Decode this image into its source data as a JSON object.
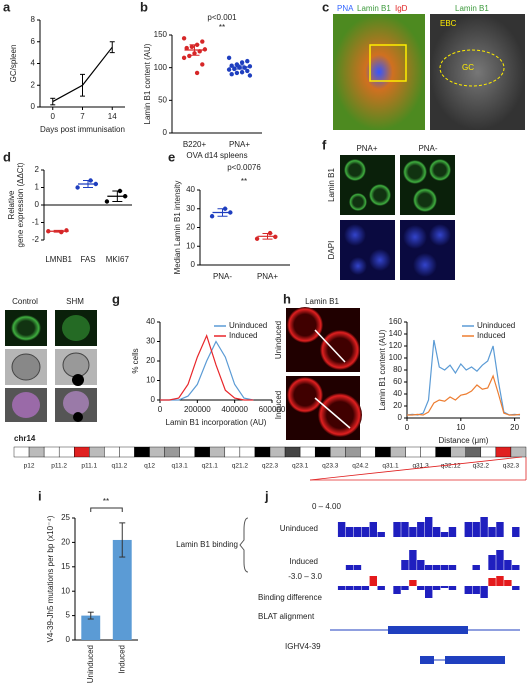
{
  "chart_data": [
    {
      "type": "line",
      "panel": "a",
      "xlabel": "Days post immunisation",
      "ylabel": "GC/spleen",
      "x": [
        0,
        7,
        14
      ],
      "xlim": [
        -3,
        17
      ],
      "xticks": [
        0,
        7,
        14
      ],
      "ylim": [
        0,
        8
      ],
      "yticks": [
        0,
        2,
        4,
        6,
        8
      ],
      "series": [
        {
          "color": "#000000",
          "values": [
            0.5,
            2,
            5.5
          ],
          "errors": [
            0.3,
            1,
            0.5
          ]
        }
      ]
    },
    {
      "type": "dot",
      "panel": "b",
      "ylabel": "Lamin B1 content (AU)",
      "xlabel": "OVA d14 spleens",
      "categories": [
        "B220+",
        "PNA+"
      ],
      "colors": [
        "#d62728",
        "#1f3fbf"
      ],
      "points": [
        [
          145,
          140,
          135,
          132,
          130,
          128,
          125,
          122,
          118,
          115,
          105,
          92
        ],
        [
          115,
          110,
          108,
          105,
          103,
          102,
          100,
          100,
          98,
          97,
          95,
          93,
          92,
          90,
          88
        ]
      ],
      "means": [
        127,
        101
      ],
      "errors": [
        8,
        3
      ],
      "annotations": [
        "p<0.001",
        "**"
      ],
      "ylim": [
        0,
        150
      ],
      "yticks": [
        0,
        50,
        100,
        150
      ]
    },
    {
      "type": "dot",
      "panel": "d",
      "ylabel": [
        "Relative",
        "gene expression (ΔΔCt)"
      ],
      "categories": [
        "LMNB1",
        "FAS",
        "MKI67"
      ],
      "colors": [
        "#d62728",
        "#1f3fbf",
        "#000000"
      ],
      "points": [
        [
          -1.5,
          -1.45,
          -1.55
        ],
        [
          1.0,
          1.2,
          1.4
        ],
        [
          0.2,
          0.5,
          0.8
        ]
      ],
      "means": [
        -1.5,
        1.2,
        0.5
      ],
      "errors": [
        0.05,
        0.2,
        0.3
      ],
      "ylim": [
        -2,
        2
      ],
      "yticks": [
        -2,
        -1,
        0,
        1,
        2
      ]
    },
    {
      "type": "dot",
      "panel": "e",
      "ylabel": "Median Lamin B1 intensity",
      "categories": [
        "PNA-",
        "PNA+"
      ],
      "colors": [
        "#1f3fbf",
        "#d62728"
      ],
      "points": [
        [
          26,
          28,
          30
        ],
        [
          14,
          15,
          17
        ]
      ],
      "means": [
        28,
        15.3
      ],
      "errors": [
        2,
        1.5
      ],
      "annotations": [
        "p<0.0076",
        "**"
      ],
      "ylim": [
        0,
        40
      ],
      "yticks": [
        0,
        10,
        20,
        30,
        40
      ]
    },
    {
      "type": "line",
      "panel": "g",
      "xlabel": "Lamin B1 incorporation (AU)",
      "ylabel": "% cells",
      "x": [
        0,
        50000,
        100000,
        150000,
        200000,
        250000,
        300000,
        350000,
        400000,
        450000,
        500000
      ],
      "xlim": [
        0,
        600000
      ],
      "xticks": [
        0,
        200000,
        400000,
        600000
      ],
      "ylim": [
        0,
        40
      ],
      "yticks": [
        0,
        10,
        20,
        30,
        40
      ],
      "legend": "top-right",
      "series": [
        {
          "name": "Uninduced",
          "color": "#5b9bd5",
          "values": [
            0,
            0,
            0,
            2,
            8,
            20,
            30,
            22,
            8,
            1,
            0
          ]
        },
        {
          "name": "Induced",
          "color": "#e8262a",
          "values": [
            0,
            0,
            1,
            8,
            22,
            33,
            18,
            5,
            1,
            0,
            0
          ]
        }
      ]
    },
    {
      "type": "line",
      "panel": "h",
      "xlabel": "Distance (μm)",
      "ylabel": "Lamin B1 content (AU)",
      "x": [
        0,
        1,
        2,
        3,
        4,
        5,
        6,
        7,
        8,
        9,
        10,
        11,
        12,
        13,
        14,
        15,
        16,
        17,
        18,
        19,
        20,
        21
      ],
      "xlim": [
        0,
        21
      ],
      "xticks": [
        0,
        10,
        20
      ],
      "ylim": [
        0,
        160
      ],
      "yticks": [
        0,
        20,
        40,
        60,
        80,
        100,
        120,
        140,
        160
      ],
      "legend": "top-right",
      "series": [
        {
          "name": "Uninduced",
          "color": "#5b9bd5",
          "values": [
            5,
            6,
            5,
            8,
            30,
            130,
            85,
            80,
            88,
            75,
            90,
            80,
            85,
            78,
            88,
            95,
            120,
            60,
            10,
            5,
            6,
            5
          ]
        },
        {
          "name": "Induced",
          "color": "#ed7d31",
          "values": [
            5,
            5,
            6,
            5,
            10,
            25,
            30,
            28,
            35,
            30,
            38,
            40,
            45,
            55,
            48,
            50,
            70,
            40,
            8,
            5,
            5,
            6
          ]
        }
      ]
    },
    {
      "type": "bar",
      "panel": "i",
      "ylabel": "V4-39-Jh5 mutations per bp (x10⁻⁴)",
      "categories": [
        "Uninduced",
        "Induced"
      ],
      "values": [
        5,
        20.5
      ],
      "errors": [
        0.7,
        3.5
      ],
      "color": "#5b9bd5",
      "annotations": [
        "**"
      ],
      "ylim": [
        0,
        25
      ],
      "yticks": [
        0,
        5,
        10,
        15,
        20,
        25
      ]
    },
    {
      "type": "tracks",
      "panel": "j",
      "group_label": "Lamin B1 binding",
      "range_label": "0 – 4.00",
      "range": [
        0,
        4
      ],
      "tracks": [
        {
          "name": "Uninduced",
          "color": "#1f1fbf",
          "values": [
            0,
            3,
            2,
            2,
            2,
            3,
            1,
            0,
            3,
            3,
            2,
            3,
            4,
            2,
            1,
            2,
            0,
            3,
            3,
            4,
            2,
            3,
            0,
            2
          ]
        },
        {
          "name": "Induced",
          "color": "#1f1fbf",
          "values": [
            0,
            0,
            1,
            1,
            0,
            0,
            0,
            0,
            0,
            2,
            4,
            2,
            1,
            1,
            1,
            1,
            0,
            0,
            1,
            0,
            3,
            4,
            2,
            1
          ]
        }
      ],
      "difference": {
        "name": "Binding difference",
        "range_label": "-3.0 – 3.0",
        "range": [
          -3,
          3
        ],
        "colors": [
          "#e41a1c",
          "#1f1fbf"
        ],
        "values": [
          0,
          -1,
          -1,
          -1,
          -1,
          2.5,
          -1,
          0,
          -2,
          -1,
          1.5,
          -1,
          -3,
          -1,
          -0.5,
          -1,
          0,
          -2,
          -2,
          -3,
          2,
          2.5,
          1.5,
          -1
        ]
      },
      "features": [
        "BLAT alignment",
        "IGHV4-39"
      ]
    }
  ],
  "images": [
    {
      "panel": "c",
      "labels": [
        "PNA",
        "Lamin B1",
        "IgD",
        "Lamin B1",
        "EBC",
        "GC"
      ]
    },
    {
      "panel": "f",
      "labels": [
        "PNA+",
        "PNA-",
        "Lamin B1",
        "DAPI"
      ]
    },
    {
      "labels": [
        "Control",
        "SHM"
      ]
    },
    {
      "labels": [
        "Lamin B1",
        "Uninduced",
        "Induced"
      ]
    }
  ],
  "ideogram": {
    "name": "chr14",
    "bands": [
      "p12",
      "p11.2",
      "p11.1",
      "q11.2",
      "q12",
      "q13.1",
      "q21.1",
      "q21.2",
      "q22.3",
      "q23.1",
      "q23.3",
      "q24.2",
      "q31.1",
      "q31.3",
      "q32.12",
      "q32.2",
      "q32.3"
    ]
  }
}
